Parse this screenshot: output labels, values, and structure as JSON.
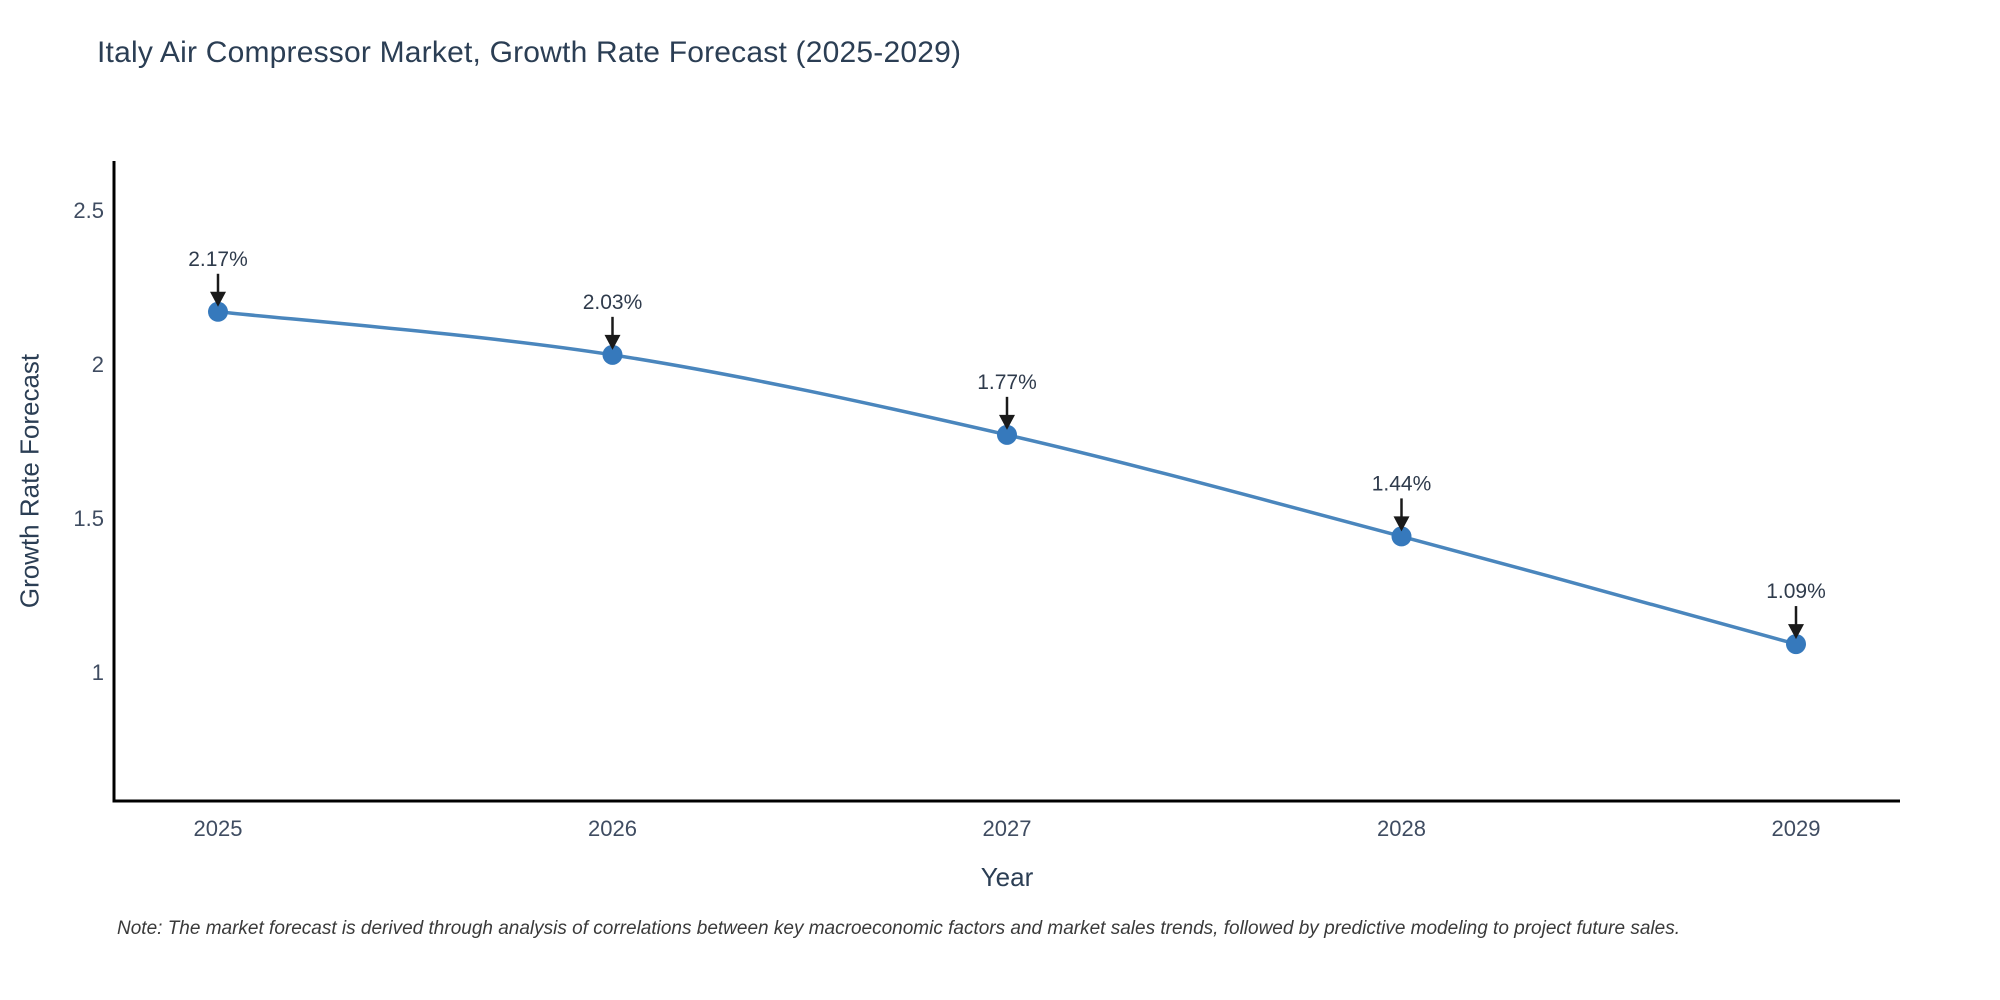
{
  "chart_data": {
    "type": "line",
    "title": "Italy Air Compressor Market, Growth Rate Forecast (2025-2029)",
    "xlabel": "Year",
    "ylabel": "Growth Rate Forecast",
    "x": [
      2025,
      2026,
      2027,
      2028,
      2029
    ],
    "series": [
      {
        "name": "Growth Rate Forecast",
        "values": [
          2.17,
          2.03,
          1.77,
          1.44,
          1.09
        ],
        "point_labels": [
          "2.17%",
          "2.03%",
          "1.77%",
          "1.44%",
          "1.09%"
        ]
      }
    ],
    "ylim": [
      0.58,
      2.66
    ],
    "yticks": [
      2.5,
      2.0,
      1.5,
      1.0
    ],
    "ytick_labels": [
      "2.5",
      "2",
      "1.5",
      "1"
    ],
    "xtick_labels": [
      "2025",
      "2026",
      "2027",
      "2028",
      "2029"
    ],
    "grid": "off",
    "legend": "none",
    "line_shape": "spline",
    "colors": {
      "line": "#4a86bd",
      "marker": "#3679bc",
      "axis_line": "#000000",
      "tick_label": "#3f4c61",
      "title": "#2b3e54",
      "axis_title": "#2b3e54",
      "annotation_text": "#2f3b4c",
      "annotation_arrow": "#1a1a1a"
    }
  },
  "note": {
    "text": "Note: The market forecast is derived through analysis of correlations between key macroeconomic factors and market sales trends, followed by predictive modeling to project future sales."
  }
}
